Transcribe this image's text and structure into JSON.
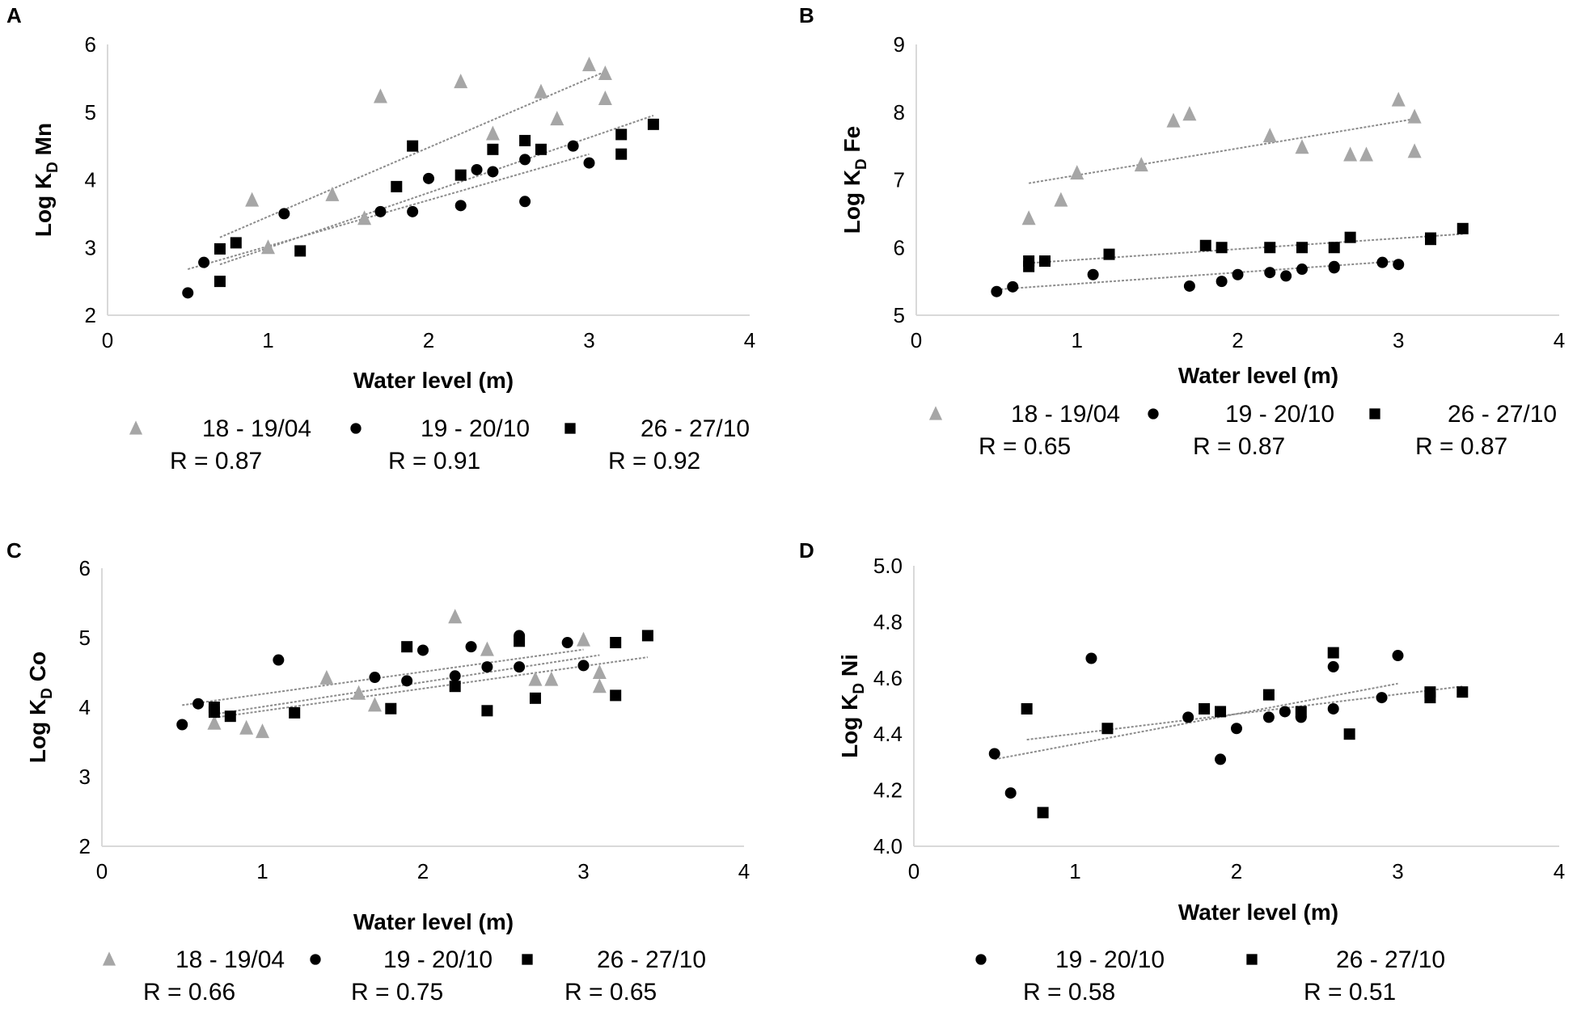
{
  "colors": {
    "gray": "#a6a6a6",
    "black": "#000000",
    "trend": "#8c8c8c",
    "axis": "#d9d9d9"
  },
  "chart_data": [
    {
      "panel": "A",
      "type": "scatter",
      "ylabel_main": "Log K",
      "ylabel_sub": "D",
      "ylabel_rest": " Mn",
      "xlabel": "Water level (m)",
      "xlim": [
        0,
        4
      ],
      "ylim": [
        2,
        6
      ],
      "xticks": [
        "0",
        "1",
        "2",
        "3",
        "4"
      ],
      "yticks": [
        "2",
        "3",
        "4",
        "5",
        "6"
      ],
      "series": [
        {
          "name": "18 - 19/04",
          "r": "R = 0.87",
          "marker": "triangle",
          "points": [
            [
              0.9,
              3.7
            ],
            [
              1.0,
              3.0
            ],
            [
              1.4,
              3.78
            ],
            [
              1.6,
              3.43
            ],
            [
              1.7,
              5.23
            ],
            [
              2.2,
              5.45
            ],
            [
              2.4,
              4.68
            ],
            [
              2.7,
              5.3
            ],
            [
              2.8,
              4.9
            ],
            [
              3.0,
              5.7
            ],
            [
              3.1,
              5.57
            ],
            [
              3.1,
              5.2
            ]
          ],
          "trend": [
            [
              0.7,
              3.15
            ],
            [
              3.1,
              5.6
            ]
          ]
        },
        {
          "name": "19 - 20/10",
          "r": "R = 0.91",
          "marker": "circle",
          "points": [
            [
              0.5,
              2.33
            ],
            [
              0.6,
              2.78
            ],
            [
              1.1,
              3.5
            ],
            [
              1.7,
              3.53
            ],
            [
              1.9,
              3.53
            ],
            [
              2.0,
              4.02
            ],
            [
              2.2,
              3.62
            ],
            [
              2.3,
              4.15
            ],
            [
              2.4,
              4.12
            ],
            [
              2.6,
              4.3
            ],
            [
              2.6,
              3.68
            ],
            [
              2.9,
              4.5
            ],
            [
              3.0,
              4.25
            ]
          ],
          "trend": [
            [
              0.5,
              2.68
            ],
            [
              3.0,
              4.38
            ]
          ]
        },
        {
          "name": "26 - 27/10",
          "r": "R = 0.92",
          "marker": "square",
          "points": [
            [
              0.7,
              2.98
            ],
            [
              0.7,
              2.5
            ],
            [
              0.8,
              3.07
            ],
            [
              1.2,
              2.95
            ],
            [
              1.8,
              3.9
            ],
            [
              1.9,
              4.5
            ],
            [
              2.2,
              4.07
            ],
            [
              2.4,
              4.45
            ],
            [
              2.6,
              4.58
            ],
            [
              2.7,
              4.45
            ],
            [
              3.2,
              4.67
            ],
            [
              3.2,
              4.38
            ],
            [
              3.4,
              4.82
            ]
          ],
          "trend": [
            [
              0.7,
              2.75
            ],
            [
              3.4,
              4.95
            ]
          ]
        }
      ]
    },
    {
      "panel": "B",
      "type": "scatter",
      "ylabel_main": "Log K",
      "ylabel_sub": "D",
      "ylabel_rest": " Fe",
      "xlabel": "Water level (m)",
      "xlim": [
        0,
        4
      ],
      "ylim": [
        5,
        9
      ],
      "xticks": [
        "0",
        "1",
        "2",
        "3",
        "4"
      ],
      "yticks": [
        "5",
        "6",
        "7",
        "8",
        "9"
      ],
      "series": [
        {
          "name": "18 - 19/04",
          "r": "R = 0.65",
          "marker": "triangle",
          "points": [
            [
              0.7,
              6.43
            ],
            [
              0.9,
              6.7
            ],
            [
              1.0,
              7.1
            ],
            [
              1.4,
              7.22
            ],
            [
              1.6,
              7.87
            ],
            [
              1.7,
              7.97
            ],
            [
              2.2,
              7.65
            ],
            [
              2.4,
              7.48
            ],
            [
              2.7,
              7.37
            ],
            [
              2.8,
              7.37
            ],
            [
              3.0,
              8.18
            ],
            [
              3.1,
              7.93
            ],
            [
              3.1,
              7.42
            ]
          ],
          "trend": [
            [
              0.7,
              6.95
            ],
            [
              3.1,
              7.9
            ]
          ]
        },
        {
          "name": "19 - 20/10",
          "r": "R = 0.87",
          "marker": "circle",
          "points": [
            [
              0.5,
              5.35
            ],
            [
              0.6,
              5.42
            ],
            [
              1.1,
              5.6
            ],
            [
              1.7,
              5.43
            ],
            [
              1.9,
              5.5
            ],
            [
              2.0,
              5.6
            ],
            [
              2.2,
              5.63
            ],
            [
              2.3,
              5.58
            ],
            [
              2.4,
              5.68
            ],
            [
              2.6,
              5.72
            ],
            [
              2.6,
              5.7
            ],
            [
              2.9,
              5.78
            ],
            [
              3.0,
              5.75
            ]
          ],
          "trend": [
            [
              0.5,
              5.38
            ],
            [
              3.0,
              5.8
            ]
          ]
        },
        {
          "name": "26 - 27/10",
          "r": "R = 0.87",
          "marker": "square",
          "points": [
            [
              0.7,
              5.72
            ],
            [
              0.7,
              5.8
            ],
            [
              0.8,
              5.8
            ],
            [
              1.2,
              5.9
            ],
            [
              1.8,
              6.03
            ],
            [
              1.9,
              6.0
            ],
            [
              2.2,
              6.0
            ],
            [
              2.4,
              6.0
            ],
            [
              2.6,
              6.0
            ],
            [
              2.7,
              6.15
            ],
            [
              3.2,
              6.12
            ],
            [
              3.2,
              6.14
            ],
            [
              3.4,
              6.28
            ]
          ],
          "trend": [
            [
              0.7,
              5.77
            ],
            [
              3.4,
              6.2
            ]
          ]
        }
      ]
    },
    {
      "panel": "C",
      "type": "scatter",
      "ylabel_main": "Log K",
      "ylabel_sub": "D",
      "ylabel_rest": " Co",
      "xlabel": "Water level (m)",
      "xlim": [
        0,
        4
      ],
      "ylim": [
        2,
        6
      ],
      "xticks": [
        "0",
        "1",
        "2",
        "3",
        "4"
      ],
      "yticks": [
        "2",
        "3",
        "4",
        "5",
        "6"
      ],
      "series": [
        {
          "name": "18 - 19/04",
          "r": "R = 0.66",
          "marker": "triangle",
          "points": [
            [
              0.7,
              3.77
            ],
            [
              0.9,
              3.7
            ],
            [
              1.0,
              3.65
            ],
            [
              1.4,
              4.42
            ],
            [
              1.6,
              4.2
            ],
            [
              1.7,
              4.03
            ],
            [
              2.2,
              5.3
            ],
            [
              2.4,
              4.83
            ],
            [
              2.7,
              4.4
            ],
            [
              2.8,
              4.4
            ],
            [
              3.0,
              4.97
            ],
            [
              3.1,
              4.5
            ],
            [
              3.1,
              4.3
            ]
          ],
          "trend": [
            [
              0.7,
              3.9
            ],
            [
              3.1,
              4.75
            ]
          ]
        },
        {
          "name": "19 - 20/10",
          "r": "R = 0.75",
          "marker": "circle",
          "points": [
            [
              0.5,
              3.75
            ],
            [
              0.6,
              4.05
            ],
            [
              1.1,
              4.68
            ],
            [
              1.7,
              4.43
            ],
            [
              1.9,
              4.38
            ],
            [
              2.0,
              4.82
            ],
            [
              2.2,
              4.45
            ],
            [
              2.3,
              4.87
            ],
            [
              2.4,
              4.58
            ],
            [
              2.6,
              5.03
            ],
            [
              2.6,
              4.58
            ],
            [
              2.9,
              4.93
            ],
            [
              3.0,
              4.6
            ]
          ],
          "trend": [
            [
              0.5,
              4.03
            ],
            [
              3.0,
              4.83
            ]
          ]
        },
        {
          "name": "26 - 27/10",
          "r": "R = 0.65",
          "marker": "square",
          "points": [
            [
              0.7,
              4.0
            ],
            [
              0.7,
              3.93
            ],
            [
              0.8,
              3.87
            ],
            [
              1.2,
              3.92
            ],
            [
              1.8,
              3.98
            ],
            [
              1.9,
              4.87
            ],
            [
              2.2,
              4.3
            ],
            [
              2.4,
              3.95
            ],
            [
              2.6,
              4.95
            ],
            [
              2.7,
              4.13
            ],
            [
              3.2,
              4.93
            ],
            [
              3.2,
              4.17
            ],
            [
              3.4,
              5.03
            ]
          ],
          "trend": [
            [
              0.7,
              3.85
            ],
            [
              3.4,
              4.72
            ]
          ]
        }
      ]
    },
    {
      "panel": "D",
      "type": "scatter",
      "ylabel_main": "Log K",
      "ylabel_sub": "D",
      "ylabel_rest": " Ni",
      "xlabel": "Water level (m)",
      "xlim": [
        0,
        4
      ],
      "ylim": [
        4.0,
        5.0
      ],
      "xticks": [
        "0",
        "1",
        "2",
        "3",
        "4"
      ],
      "yticks": [
        "4.0",
        "4.2",
        "4.4",
        "4.6",
        "4.8",
        "5.0"
      ],
      "series": [
        {
          "name": "19 - 20/10",
          "r": "R = 0.58",
          "marker": "circle",
          "points": [
            [
              0.5,
              4.33
            ],
            [
              0.6,
              4.19
            ],
            [
              1.1,
              4.67
            ],
            [
              1.7,
              4.46
            ],
            [
              1.9,
              4.31
            ],
            [
              2.0,
              4.42
            ],
            [
              2.2,
              4.46
            ],
            [
              2.3,
              4.48
            ],
            [
              2.4,
              4.46
            ],
            [
              2.6,
              4.49
            ],
            [
              2.6,
              4.64
            ],
            [
              2.9,
              4.53
            ],
            [
              3.0,
              4.68
            ]
          ],
          "trend": [
            [
              0.5,
              4.31
            ],
            [
              3.0,
              4.58
            ]
          ]
        },
        {
          "name": "26 - 27/10",
          "r": "R = 0.51",
          "marker": "square",
          "points": [
            [
              0.7,
              4.49
            ],
            [
              0.8,
              4.12
            ],
            [
              1.2,
              4.42
            ],
            [
              1.8,
              4.49
            ],
            [
              1.9,
              4.48
            ],
            [
              2.2,
              4.54
            ],
            [
              2.4,
              4.48
            ],
            [
              2.6,
              4.69
            ],
            [
              2.7,
              4.4
            ],
            [
              3.2,
              4.53
            ],
            [
              3.2,
              4.55
            ],
            [
              3.4,
              4.55
            ]
          ],
          "trend": [
            [
              0.7,
              4.38
            ],
            [
              3.4,
              4.57
            ]
          ]
        }
      ]
    }
  ]
}
